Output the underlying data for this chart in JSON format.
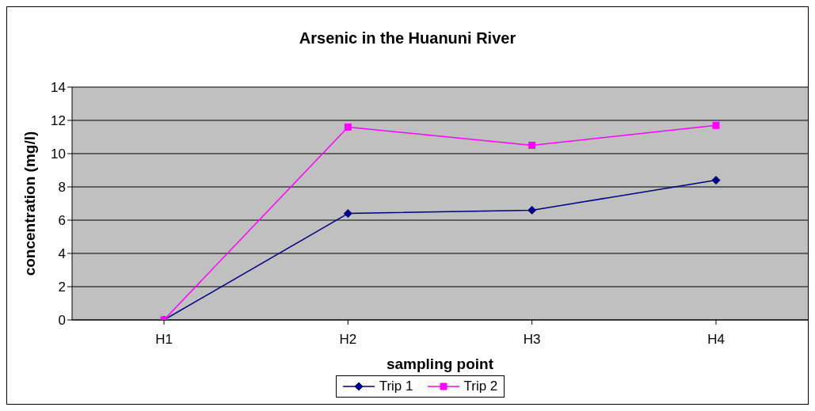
{
  "chart_data": {
    "type": "line",
    "title": "Arsenic in the Huanuni River",
    "xlabel": "sampling point",
    "ylabel": "concentration (mg/l)",
    "categories": [
      "H1",
      "H2",
      "H3",
      "H4"
    ],
    "series": [
      {
        "name": "Trip 1",
        "color": "#000080",
        "marker": "diamond",
        "values": [
          0,
          6.4,
          6.6,
          8.4
        ]
      },
      {
        "name": "Trip 2",
        "color": "#ff00ff",
        "marker": "square",
        "values": [
          0,
          11.6,
          10.5,
          11.7
        ]
      }
    ],
    "ylim": [
      0,
      14
    ],
    "yticks": [
      0,
      2,
      4,
      6,
      8,
      10,
      12,
      14
    ],
    "grid": "y",
    "legend": "bottom"
  }
}
